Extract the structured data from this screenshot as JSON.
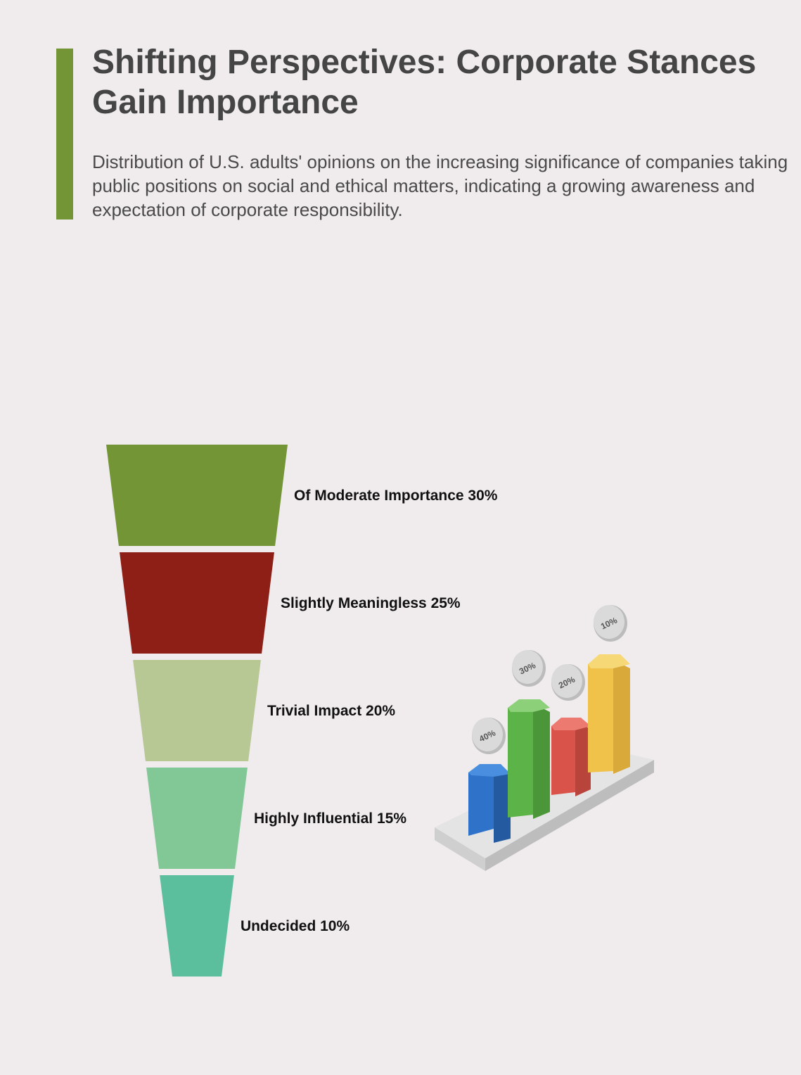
{
  "header": {
    "title": "Shifting Perspectives: Corporate Stances Gain Importance",
    "subtitle": "Distribution of U.S. adults' opinions on the increasing significance of companies taking public positions on social and ethical matters, indicating a growing awareness and expectation of corporate responsibility.",
    "accent_color": "#749536"
  },
  "chart_data": {
    "type": "funnel",
    "categories": [
      "Of Moderate Importance",
      "Slightly Meaningless",
      "Trivial Impact",
      "Highly Influential",
      "Undecided"
    ],
    "values": [
      30,
      25,
      20,
      15,
      10
    ],
    "unit": "%",
    "labels": [
      "Of Moderate Importance 30%",
      "Slightly Meaningless 25%",
      "Trivial Impact 20%",
      "Highly Influential 15%",
      "Undecided 10%"
    ],
    "colors": [
      "#749536",
      "#8e1f16",
      "#b8c895",
      "#82c796",
      "#5bbf9d"
    ]
  },
  "illustration": {
    "icon": "isometric-bar-chart-icon",
    "bar_labels": [
      "40%",
      "30%",
      "20%",
      "10%"
    ],
    "bar_colors": [
      "#2f72c9",
      "#5cb347",
      "#d9534a",
      "#f0c24a"
    ]
  }
}
